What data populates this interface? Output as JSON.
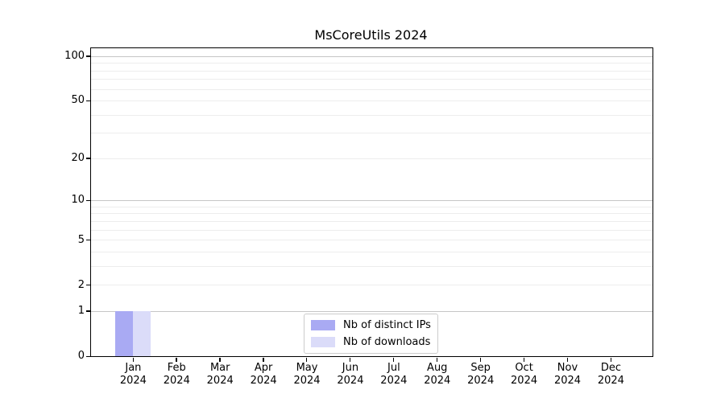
{
  "title": "MsCoreUtils 2024",
  "chart_data": {
    "type": "bar",
    "title": "MsCoreUtils 2024",
    "categories": [
      "Jan",
      "Feb",
      "Mar",
      "Apr",
      "May",
      "Jun",
      "Jul",
      "Aug",
      "Sep",
      "Oct",
      "Nov",
      "Dec"
    ],
    "category_year": "2024",
    "series": [
      {
        "name": "Nb of distinct IPs",
        "color": "#a9aaf3",
        "values": [
          1,
          0,
          0,
          0,
          0,
          0,
          0,
          0,
          0,
          0,
          0,
          0
        ]
      },
      {
        "name": "Nb of downloads",
        "color": "#dbdcf9",
        "values": [
          1,
          0,
          0,
          0,
          0,
          0,
          0,
          0,
          0,
          0,
          0,
          0
        ]
      }
    ],
    "xlabel": "",
    "ylabel": "",
    "yscale": "log1p",
    "ylim": [
      0,
      113
    ],
    "y_ticks": [
      0,
      1,
      2,
      5,
      10,
      20,
      50,
      100
    ],
    "grid": {
      "major_values": [
        1,
        10,
        100
      ],
      "minor_values": [
        2,
        3,
        4,
        5,
        6,
        7,
        8,
        9,
        20,
        30,
        40,
        50,
        60,
        70,
        80,
        90
      ],
      "major_color": "#c6c6c6",
      "minor_color": "#ededed"
    },
    "legend": {
      "position": "bottom-center",
      "entries": [
        "Nb of distinct IPs",
        "Nb of downloads"
      ]
    },
    "axis_color": "#000000",
    "background_color": "#ffffff"
  }
}
